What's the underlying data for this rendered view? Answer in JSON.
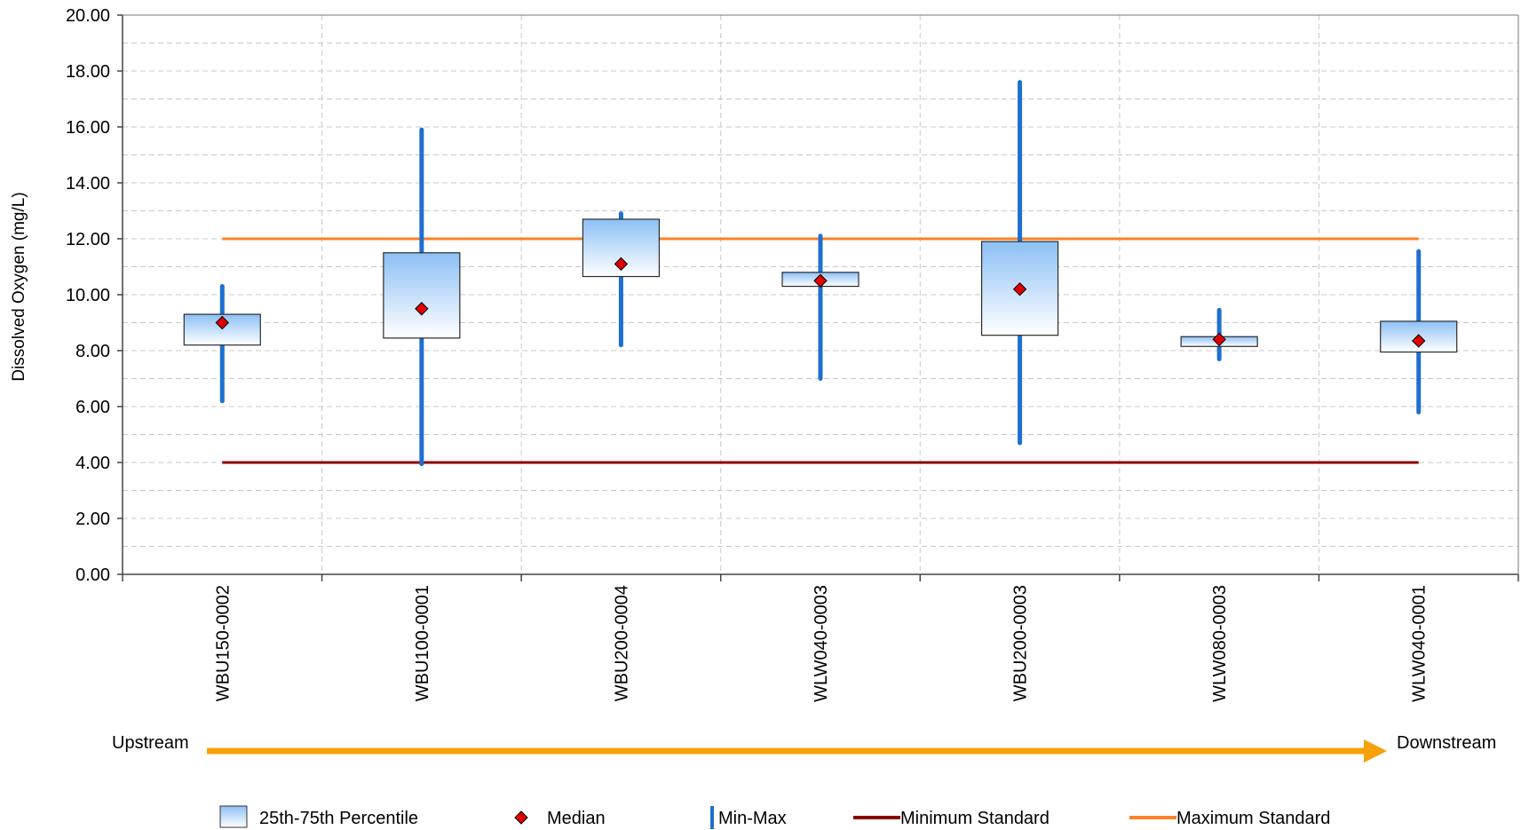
{
  "chart_data": {
    "type": "box",
    "title": "",
    "ylabel": "Dissolved Oxygen (mg/L)",
    "ylim": [
      0,
      20
    ],
    "ytick_step": 2,
    "ytick_format_decimals": 2,
    "grid": true,
    "categories": [
      "WBU150-0002",
      "WBU100-0001",
      "WBU200-0004",
      "WLW040-0003",
      "WBU200-0003",
      "WLW080-0003",
      "WLW040-0001"
    ],
    "series": [
      {
        "name": "Min-Max",
        "low": [
          6.2,
          3.95,
          8.2,
          7.0,
          4.7,
          7.7,
          5.8
        ],
        "high": [
          10.3,
          15.9,
          12.9,
          12.1,
          17.6,
          9.45,
          11.55
        ]
      },
      {
        "name": "25th-75th Percentile",
        "q1": [
          8.2,
          8.45,
          10.65,
          10.3,
          8.55,
          8.15,
          7.95
        ],
        "q3": [
          9.3,
          11.5,
          12.7,
          10.8,
          11.9,
          8.5,
          9.05
        ]
      },
      {
        "name": "Median",
        "values": [
          9.0,
          9.5,
          11.1,
          10.5,
          10.2,
          8.4,
          8.35
        ]
      }
    ],
    "reference_lines": [
      {
        "name": "Minimum Standard",
        "value": 4.0,
        "color": "#8b0000"
      },
      {
        "name": "Maximum Standard",
        "value": 12.0,
        "color": "#ff7f27"
      }
    ],
    "flow_labels": {
      "start": "Upstream",
      "end": "Downstream"
    },
    "legend": {
      "placement": "bottom",
      "items": [
        "25th-75th Percentile",
        "Median",
        "Min-Max",
        "Minimum Standard",
        "Maximum Standard"
      ]
    },
    "colors": {
      "whisker": "#1f6fd0",
      "median": "#e00000",
      "box_top": "#8cc0f5",
      "box_bottom": "#ffffff",
      "arrow": "#f7a10a",
      "grid": "#c8c8c8"
    }
  }
}
